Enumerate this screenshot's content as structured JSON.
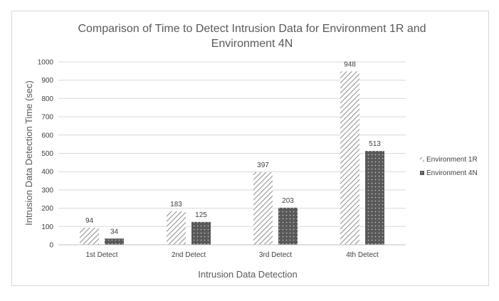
{
  "chart_data": {
    "type": "bar",
    "title_line1": "Comparison of Time to Detect Intrusion Data for Environment 1R and",
    "title_line2": "Environment 4N",
    "xlabel": "Intrusion Data Detection",
    "ylabel": "Intrusion Data Detection Time (sec)",
    "categories": [
      "1st Detect",
      "2nd Detect",
      "3rd Detect",
      "4th Detect"
    ],
    "ylim": [
      0,
      1000
    ],
    "yticks": [
      0,
      100,
      200,
      300,
      400,
      500,
      600,
      700,
      800,
      900,
      1000
    ],
    "grid": true,
    "legend_position": "right",
    "series": [
      {
        "name": "Environment 1R",
        "values": [
          94,
          183,
          397,
          948
        ],
        "pattern": "diagonal-stripes",
        "color": "#8c8c8c"
      },
      {
        "name": "Environment 4N",
        "values": [
          34,
          125,
          203,
          513
        ],
        "pattern": "dots",
        "color": "#595959"
      }
    ]
  }
}
